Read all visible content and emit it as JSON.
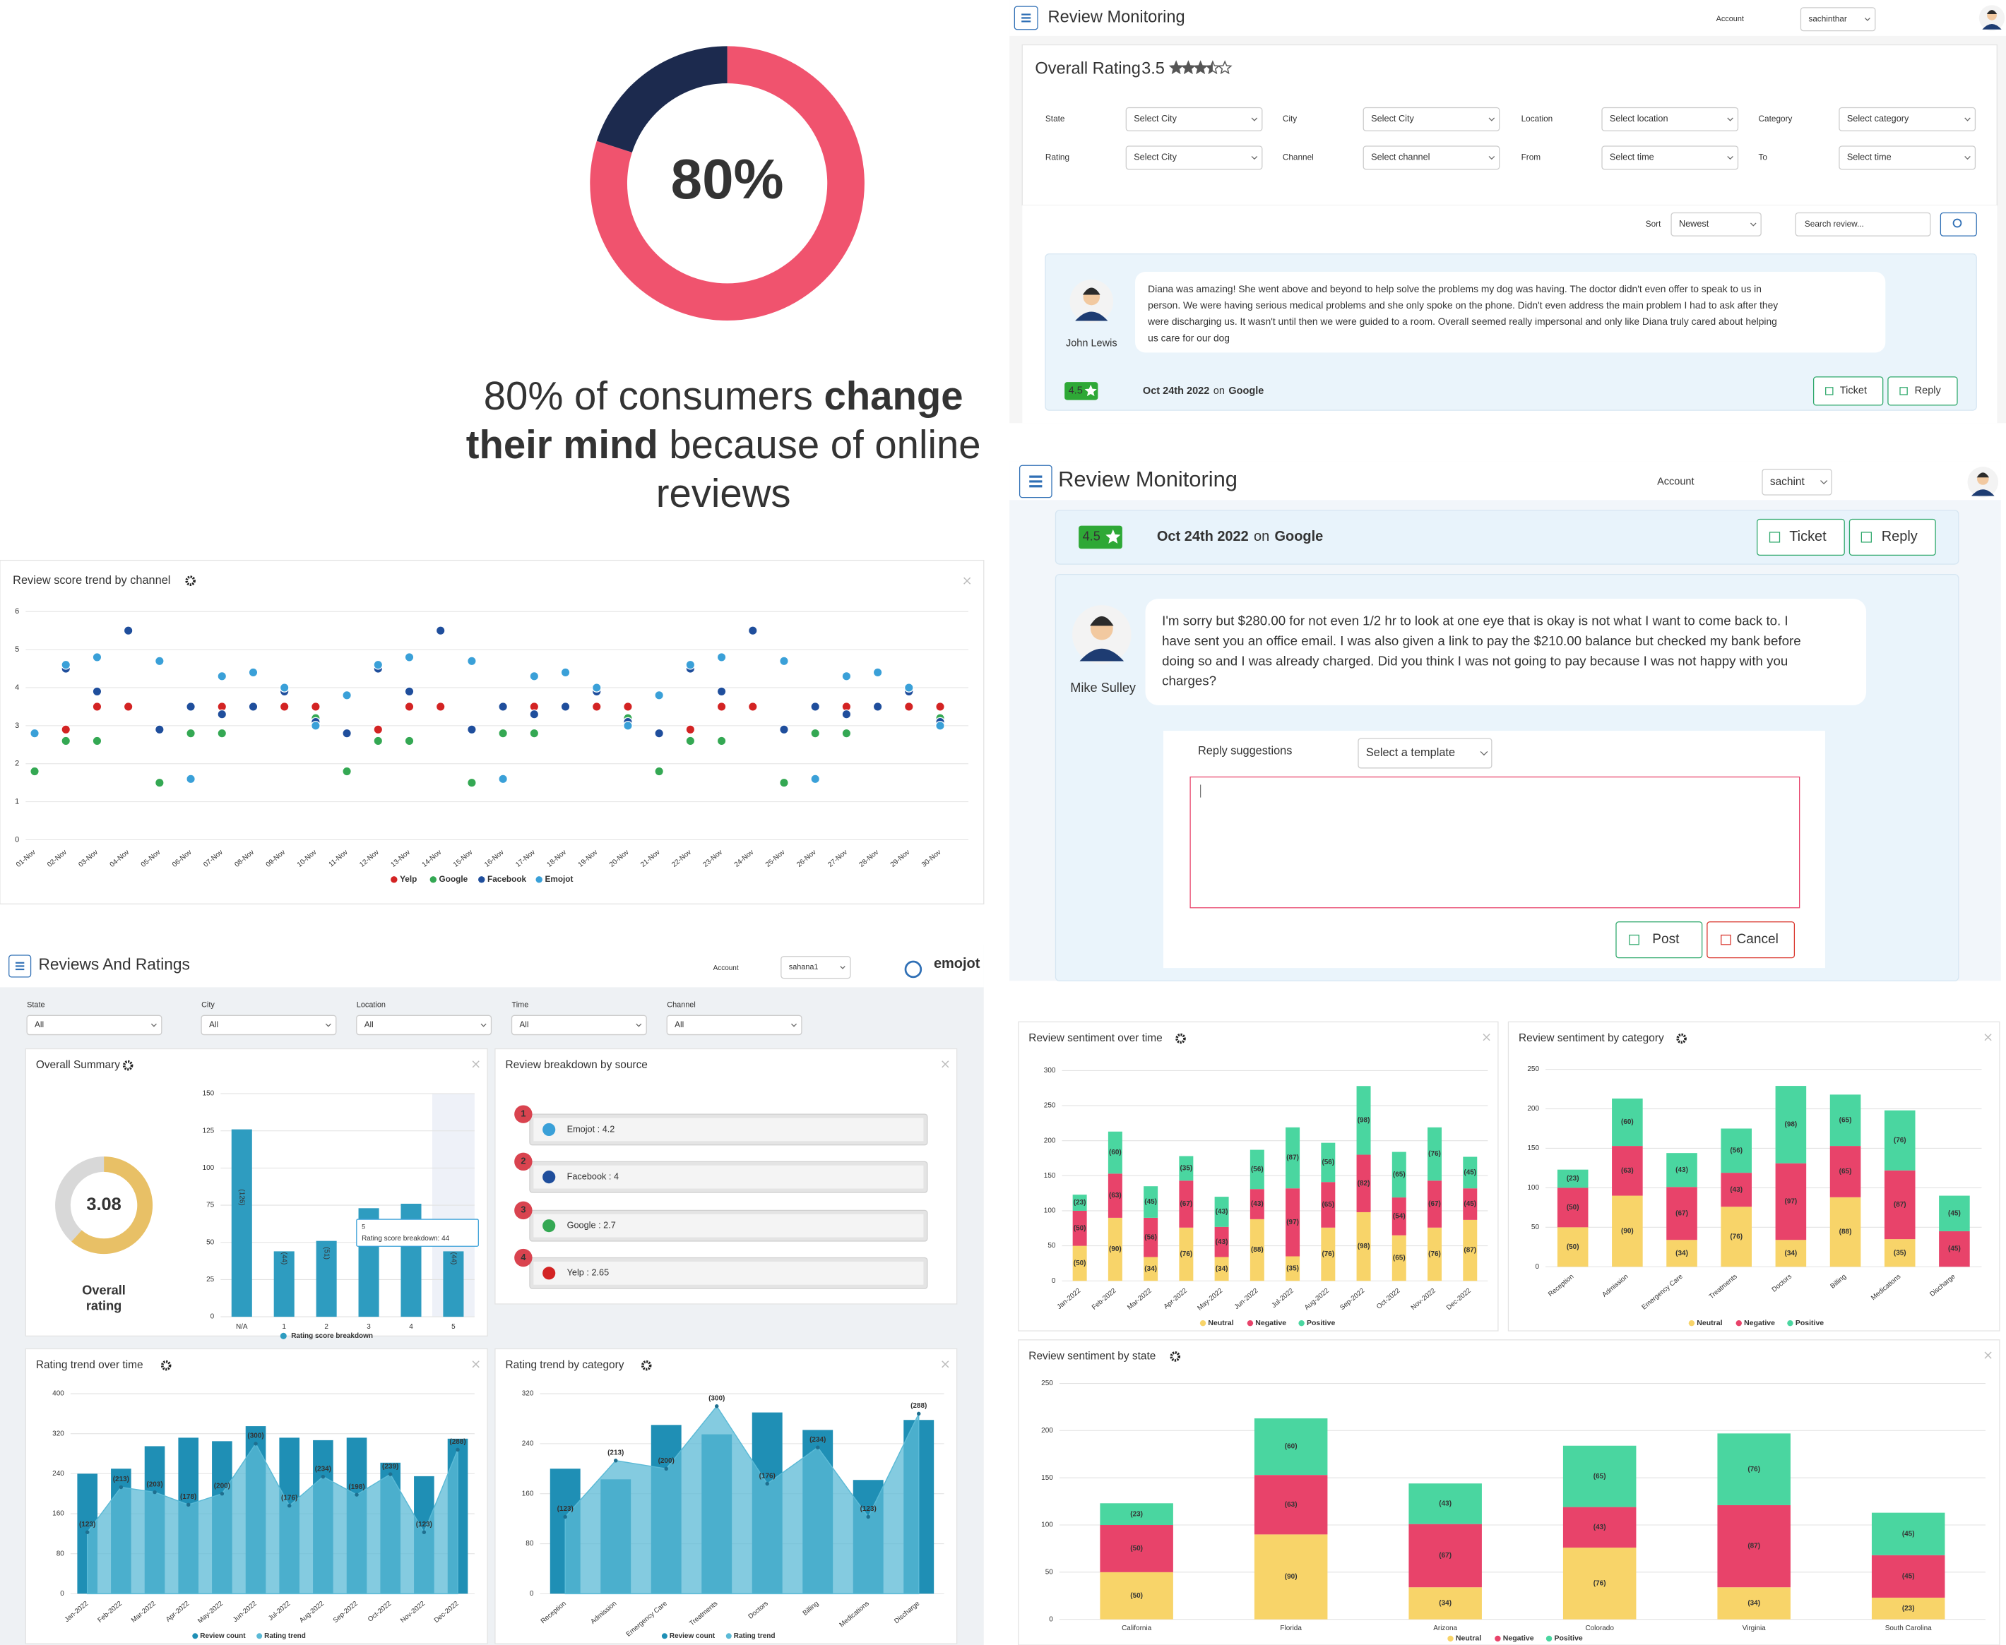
{
  "promo": {
    "donut": {
      "value": 80,
      "label": "80%",
      "color": "#f0536e",
      "rest_color": "#1c2a4e"
    },
    "caption": [
      [
        {
          "text": "80% of consumers ",
          "bold": false
        },
        {
          "text": "change",
          "bold": true
        }
      ],
      [
        {
          "text": "their mind",
          "bold": true
        },
        {
          "text": " because of online",
          "bold": false
        }
      ],
      [
        {
          "text": "reviews",
          "bold": false
        }
      ]
    ]
  },
  "monitor1": {
    "title": "Review Monitoring",
    "account_label": "Account",
    "account": "sachinthar",
    "overall_label": "Overall Rating",
    "overall_value": 3.5,
    "filters": [
      {
        "label": "State",
        "value": "Select City"
      },
      {
        "label": "City",
        "value": "Select City"
      },
      {
        "label": "Location",
        "value": "Select location"
      },
      {
        "label": "Category",
        "value": "Select category"
      },
      {
        "label": "Rating",
        "value": "Select City"
      },
      {
        "label": "Channel",
        "value": "Select channel"
      },
      {
        "label": "From",
        "value": "Select time"
      },
      {
        "label": "To",
        "value": "Select time"
      }
    ],
    "sort_label": "Sort",
    "sort": "Newest",
    "search": "Search review...",
    "review": {
      "name": "John Lewis",
      "lines": [
        "Diana was amazing! She went above and beyond to help solve the problems my dog was having. The doctor didn't even offer to speak to us in",
        "person. We were having serious medical problems and she only spoke on the phone. Didn't even address the main problem I had to ask after they",
        "were discharging us. It wasn't until then we were guided to a room. Overall seemed really impersonal and only like Diana truly cared about helping",
        "us care for our dog"
      ],
      "rating": 4.5,
      "date": "Oct 24th 2022",
      "on": "on",
      "source": "Google",
      "ticket": "Ticket",
      "reply": "Reply"
    }
  },
  "monitor2": {
    "title": "Review Monitoring",
    "account_label": "Account",
    "account": "sachint",
    "prev": {
      "rating": 4.5,
      "date": "Oct 24th 2022",
      "on": "on",
      "source": "Google",
      "ticket": "Ticket",
      "reply": "Reply"
    },
    "review": {
      "name": "Mike Sulley",
      "lines": [
        "I'm sorry but $280.00 for not even 1/2 hr to look at one eye that is okay is not what I want to come back to. I",
        "have sent you an office email. I was also given a link to pay the $210.00 balance but checked my bank before",
        "doing so and I was already charged. Did you think I was not going to pay because I was not happy with you",
        "charges?"
      ]
    },
    "reply_label": "Reply suggestions",
    "template": "Select a template",
    "post": "Post",
    "cancel": "Cancel"
  },
  "score_trend": {
    "type": "scatter",
    "title": "Review score trend by channel",
    "categories": [
      "01-Nov",
      "02-Nov",
      "03-Nov",
      "04-Nov",
      "05-Nov",
      "06-Nov",
      "07-Nov",
      "08-Nov",
      "09-Nov",
      "10-Nov",
      "11-Nov",
      "12-Nov",
      "13-Nov",
      "14-Nov",
      "15-Nov",
      "16-Nov",
      "17-Nov",
      "18-Nov",
      "19-Nov",
      "20-Nov",
      "21-Nov",
      "22-Nov",
      "23-Nov",
      "24-Nov",
      "25-Nov",
      "26-Nov",
      "27-Nov",
      "28-Nov",
      "29-Nov",
      "30-Nov"
    ],
    "series": [
      {
        "name": "Yelp",
        "color": "#d32323",
        "values": [
          2.8,
          2.9,
          3.5,
          3.5,
          2.9,
          3.5,
          3.5,
          3.5,
          3.5,
          3.5,
          2.8,
          2.9,
          3.5,
          3.5,
          2.9,
          3.5,
          3.5,
          3.5,
          3.5,
          3.5,
          2.8,
          2.9,
          3.5,
          3.5,
          2.9,
          3.5,
          3.5,
          3.5,
          3.5,
          3.5
        ]
      },
      {
        "name": "Google",
        "color": "#34a853",
        "values": [
          1.8,
          2.6,
          2.6,
          null,
          1.5,
          2.8,
          2.8,
          4.4,
          3.9,
          3.2,
          1.8,
          2.6,
          2.6,
          null,
          1.5,
          2.8,
          2.8,
          4.4,
          3.9,
          3.2,
          1.8,
          2.6,
          2.6,
          null,
          1.5,
          2.8,
          2.8,
          4.4,
          3.9,
          3.2
        ]
      },
      {
        "name": "Facebook",
        "color": "#1f4e9c",
        "values": [
          2.8,
          4.5,
          3.9,
          5.5,
          2.9,
          3.5,
          3.3,
          3.5,
          3.9,
          3.1,
          2.8,
          4.5,
          3.9,
          5.5,
          2.9,
          3.5,
          3.3,
          3.5,
          3.9,
          3.1,
          2.8,
          4.5,
          3.9,
          5.5,
          2.9,
          3.5,
          3.3,
          3.5,
          3.9,
          3.1
        ]
      },
      {
        "name": "Emojot",
        "color": "#3aa0d8",
        "values": [
          2.8,
          4.6,
          4.8,
          null,
          4.7,
          1.6,
          4.3,
          4.4,
          4.0,
          3.0,
          3.8,
          4.6,
          4.8,
          null,
          4.7,
          1.6,
          4.3,
          4.4,
          4.0,
          3.0,
          3.8,
          4.6,
          4.8,
          null,
          4.7,
          1.6,
          4.3,
          4.4,
          4.0,
          3.0
        ]
      }
    ],
    "ylim": [
      0,
      6
    ],
    "yticks": [
      0,
      1,
      2,
      3,
      4,
      5,
      6
    ],
    "grid": true
  },
  "dashboard": {
    "title": "Reviews And Ratings",
    "account_label": "Account",
    "account": "sahana1",
    "logo": "emojot",
    "filters": [
      {
        "label": "State",
        "value": "All"
      },
      {
        "label": "City",
        "value": "All"
      },
      {
        "label": "Location",
        "value": "All"
      },
      {
        "label": "Time",
        "value": "All"
      },
      {
        "label": "Channel",
        "value": "All"
      }
    ],
    "summary": {
      "title": "Overall Summary",
      "rating": 3.08,
      "label_lines": [
        "Overall",
        "rating"
      ]
    },
    "breakdown": {
      "type": "bar",
      "categories": [
        "N/A",
        "1",
        "2",
        "3",
        "4",
        "5"
      ],
      "values": [
        126,
        44,
        51,
        73,
        76,
        44
      ],
      "value_labels": [
        "(126)",
        "(44)",
        "(51)",
        "(73)",
        "(76)",
        "(44)"
      ],
      "color": "#2e9cc0",
      "ylim": [
        0,
        150
      ],
      "yticks": [
        0,
        25,
        50,
        75,
        100,
        125,
        150
      ],
      "legend": "Rating score breakdown",
      "tooltip": {
        "title": "5",
        "text": "Rating score breakdown: 44"
      }
    },
    "sources": {
      "title": "Review breakdown by source",
      "items": [
        {
          "rank": 1,
          "label": "Emojot : 4.2",
          "color": "#3aa0d8"
        },
        {
          "rank": 2,
          "label": "Facebook : 4",
          "color": "#1f4e9c"
        },
        {
          "rank": 3,
          "label": "Google : 2.7",
          "color": "#34a853"
        },
        {
          "rank": 4,
          "label": "Yelp : 2.65",
          "color": "#d32323"
        }
      ]
    },
    "rating_time": {
      "type": "combo",
      "title": "Rating trend over time",
      "categories": [
        "Jan-2022",
        "Feb-2022",
        "Mar-2022",
        "Apr-2022",
        "May-2022",
        "Jun-2022",
        "Jul-2022",
        "Aug-2022",
        "Sep-2022",
        "Oct-2022",
        "Nov-2022",
        "Dec-2022"
      ],
      "series": [
        {
          "name": "Review count",
          "color": "#1f8fb5",
          "values": [
            240,
            250,
            295,
            312,
            305,
            335,
            312,
            307,
            312,
            262,
            235,
            310
          ]
        },
        {
          "name": "Rating trend",
          "color": "#5bbad6",
          "values": [
            123,
            213,
            203,
            178,
            200,
            300,
            176,
            234,
            198,
            239,
            123,
            288
          ],
          "value_labels": [
            "(123)",
            "(213)",
            "(203)",
            "(178)",
            "(200)",
            "(300)",
            "(176)",
            "(234)",
            "(198)",
            "(239)",
            "(123)",
            "(288)"
          ]
        }
      ],
      "ylim": [
        0,
        400
      ],
      "yticks": [
        0,
        80,
        160,
        240,
        320,
        400
      ]
    },
    "rating_cat": {
      "type": "combo",
      "title": "Rating trend by category",
      "categories": [
        "Reception",
        "Admission",
        "Emergency Care",
        "Treatments",
        "Doctors",
        "Billing",
        "Medications",
        "Discharge"
      ],
      "series": [
        {
          "name": "Review count",
          "color": "#1f8fb5",
          "values": [
            200,
            183,
            270,
            255,
            290,
            262,
            182,
            278
          ]
        },
        {
          "name": "Rating trend",
          "color": "#5bbad6",
          "values": [
            123,
            213,
            200,
            300,
            176,
            234,
            123,
            288
          ],
          "value_labels": [
            "(123)",
            "(213)",
            "(200)",
            "(300)",
            "(176)",
            "(234)",
            "(123)",
            "(288)"
          ]
        }
      ],
      "ylim": [
        0,
        320
      ],
      "yticks": [
        0,
        80,
        160,
        240,
        320
      ]
    }
  },
  "sent_time": {
    "type": "stacked_bar",
    "title": "Review sentiment over time",
    "categories": [
      "Jan-2022",
      "Feb-2022",
      "Mar-2022",
      "Apr-2022",
      "May-2022",
      "Jun-2022",
      "Jul-2022",
      "Aug-2022",
      "Sep-2022",
      "Oct-2022",
      "Nov-2022",
      "Dec-2022"
    ],
    "series": [
      {
        "name": "Neutral",
        "color": "#f8d469",
        "values": [
          50,
          90,
          34,
          76,
          34,
          88,
          35,
          76,
          98,
          65,
          76,
          87
        ],
        "value_labels": [
          "(50)",
          "(90)",
          "(34)",
          "(76)",
          "(34)",
          "(88)",
          "(35)",
          "(76)",
          "(98)",
          "(65)",
          "(76)",
          "(87)"
        ]
      },
      {
        "name": "Negative",
        "color": "#e8436a",
        "values": [
          50,
          63,
          56,
          67,
          43,
          43,
          97,
          65,
          82,
          54,
          67,
          45
        ],
        "value_labels": [
          "(50)",
          "(63)",
          "(56)",
          "(67)",
          "(43)",
          "(43)",
          "(97)",
          "(65)",
          "(82)",
          "(54)",
          "(67)",
          "(45)"
        ]
      },
      {
        "name": "Positive",
        "color": "#4ad6a0",
        "values": [
          23,
          60,
          45,
          35,
          43,
          56,
          87,
          56,
          98,
          65,
          76,
          45
        ],
        "value_labels": [
          "(23)",
          "(60)",
          "(45)",
          "(35)",
          "(43)",
          "(56)",
          "(87)",
          "(56)",
          "(98)",
          "(65)",
          "(76)",
          "(45)"
        ]
      }
    ],
    "ylim": [
      0,
      300
    ],
    "yticks": [
      0,
      50,
      100,
      150,
      200,
      250,
      300
    ]
  },
  "sent_cat": {
    "type": "stacked_bar",
    "title": "Review sentiment by category",
    "categories": [
      "Reception",
      "Admission",
      "Emergency Care",
      "Treatments",
      "Doctors",
      "Billing",
      "Medications",
      "Discharge"
    ],
    "series": [
      {
        "name": "Neutral",
        "color": "#f8d469",
        "values": [
          50,
          90,
          34,
          76,
          34,
          88,
          35,
          null
        ],
        "value_labels": [
          "(50)",
          "(90)",
          "(34)",
          "(76)",
          "(34)",
          "(88)",
          "(35)",
          null
        ]
      },
      {
        "name": "Negative",
        "color": "#e8436a",
        "values": [
          50,
          63,
          67,
          43,
          97,
          65,
          87,
          45
        ],
        "value_labels": [
          "(50)",
          "(63)",
          "(67)",
          "(43)",
          "(97)",
          "(65)",
          "(87)",
          "(45)"
        ]
      },
      {
        "name": "Positive",
        "color": "#4ad6a0",
        "values": [
          23,
          60,
          43,
          56,
          98,
          65,
          76,
          45
        ],
        "value_labels": [
          "(23)",
          "(60)",
          "(43)",
          "(56)",
          "(98)",
          "(65)",
          "(76)",
          "(45)"
        ]
      }
    ],
    "ylim": [
      0,
      250
    ],
    "yticks": [
      0,
      50,
      100,
      150,
      200,
      250
    ]
  },
  "sent_state": {
    "type": "stacked_bar",
    "title": "Review sentiment by state",
    "categories": [
      "California",
      "Florida",
      "Arizona",
      "Colorado",
      "Virginia",
      "South Carolina"
    ],
    "series": [
      {
        "name": "Neutral",
        "color": "#f8d469",
        "values": [
          50,
          90,
          34,
          76,
          34,
          23
        ],
        "value_labels": [
          "(50)",
          "(90)",
          "(34)",
          "(76)",
          "(34)",
          "(23)"
        ]
      },
      {
        "name": "Negative",
        "color": "#e8436a",
        "values": [
          50,
          63,
          67,
          43,
          87,
          45
        ],
        "value_labels": [
          "(50)",
          "(63)",
          "(67)",
          "(43)",
          "(87)",
          "(45)"
        ]
      },
      {
        "name": "Positive",
        "color": "#4ad6a0",
        "values": [
          23,
          60,
          43,
          65,
          76,
          45
        ],
        "value_labels": [
          "(23)",
          "(60)",
          "(43)",
          "(65)",
          "(76)",
          "(45)"
        ]
      }
    ],
    "ylim": [
      0,
      250
    ],
    "yticks": [
      0,
      50,
      100,
      150,
      200,
      250
    ]
  }
}
